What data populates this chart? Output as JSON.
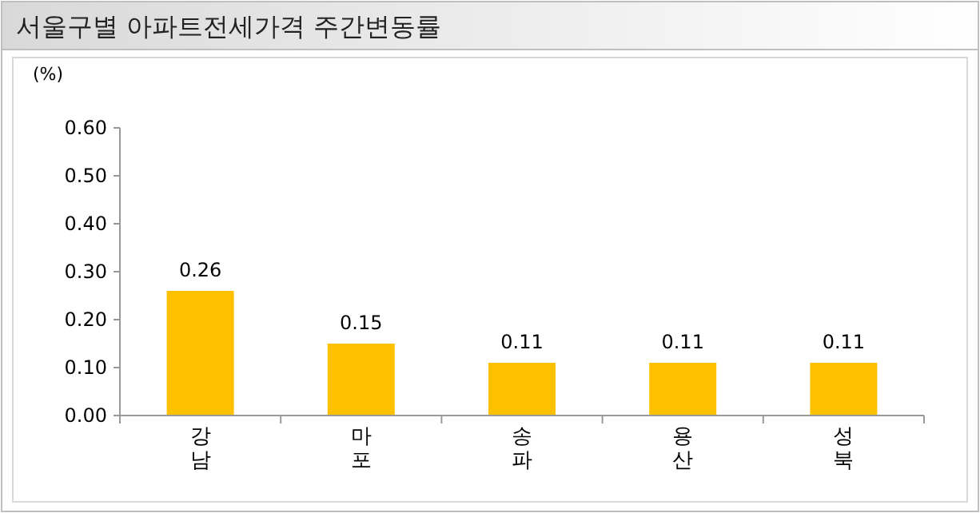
{
  "chart_data": {
    "type": "bar",
    "title": "서울구별 아파트전세가격 주간변동률",
    "ylabel": "(%)",
    "categories": [
      "강남",
      "마포",
      "송파",
      "용산",
      "성북"
    ],
    "values": [
      0.26,
      0.15,
      0.11,
      0.11,
      0.11
    ],
    "color": "#ffc000",
    "ylim": [
      0,
      0.6
    ],
    "yticks": [
      {
        "value": 0,
        "label": "0.00"
      },
      {
        "value": 0.1,
        "label": "0.10"
      },
      {
        "value": 0.2,
        "label": "0.20"
      },
      {
        "value": 0.3,
        "label": "0.30"
      },
      {
        "value": 0.4,
        "label": "0.40"
      },
      {
        "value": 0.5,
        "label": "0.50"
      },
      {
        "value": 0.6,
        "label": "0.60"
      }
    ],
    "data_labels": true,
    "grid": false
  }
}
